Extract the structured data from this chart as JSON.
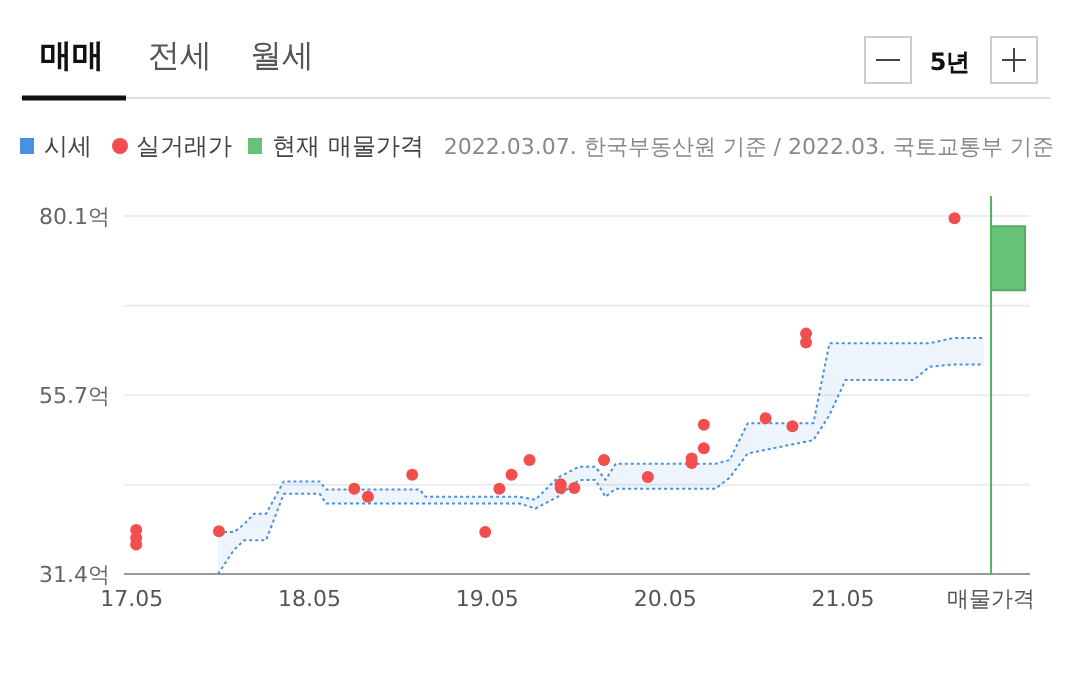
{
  "chart_data": {
    "type": "scatter",
    "ylim": [
      31.4,
      80.1
    ],
    "yticks": [
      {
        "value": 31.4,
        "label": "31.4억"
      },
      {
        "value": 43.55,
        "label": null
      },
      {
        "value": 55.7,
        "label": "55.7억"
      },
      {
        "value": 67.9,
        "label": null
      },
      {
        "value": 80.1,
        "label": "80.1억"
      }
    ],
    "xlim": [
      "2017-04-15",
      "2022-05-20"
    ],
    "xticks": [
      {
        "value": "2017-05",
        "label": "17.05"
      },
      {
        "value": "2018-05",
        "label": "18.05"
      },
      {
        "value": "2019-05",
        "label": "19.05"
      },
      {
        "value": "2020-05",
        "label": "20.05"
      },
      {
        "value": "2021-05",
        "label": "21.05"
      },
      {
        "value": "2022-03-01",
        "label": "매물가격"
      }
    ],
    "grid": "y",
    "legend": "top left",
    "annotations": [
      "매매",
      "전세",
      "월세",
      "5년",
      "2022.03.07. 한국부동산원 기준 / 2022.03. 국토교통부 기준"
    ],
    "ref_lines": [
      {
        "axis": "x",
        "value": "2022-03-01",
        "color": "#4cb85c"
      }
    ],
    "series": [
      {
        "name": "시세",
        "type": "line",
        "color": "#4a90e2",
        "line_style": "dotted",
        "x": [
          "2017-10-25",
          "2017-11-27",
          "2017-12-18",
          "2018-01-07",
          "2018-02-01",
          "2018-03-09",
          "2018-05-22",
          "2018-06-04",
          "2018-12-13",
          "2018-12-26",
          "2019-07-06",
          "2019-08-08",
          "2019-09-23",
          "2019-11-06",
          "2019-12-09",
          "2019-12-30",
          "2020-01-20",
          "2020-08-12",
          "2020-09-10",
          "2020-10-17",
          "2021-03-01",
          "2021-04-03",
          "2021-05-06",
          "2021-09-23",
          "2021-10-26",
          "2021-12-14",
          "2022-02-14"
        ],
        "values": [
          37.1,
          37.1,
          38.2,
          39.6,
          39.6,
          44.0,
          44.0,
          42.9,
          42.9,
          41.9,
          41.9,
          41.5,
          44.5,
          46.0,
          46.0,
          44.2,
          46.4,
          46.4,
          46.9,
          51.9,
          51.9,
          62.8,
          62.8,
          62.8,
          62.8,
          63.5,
          63.5
        ]
      },
      {
        "type": "line",
        "color": "#4a90e2",
        "line_style": "dotted",
        "x": [
          "2017-10-25",
          "2017-11-27",
          "2017-12-18",
          "2018-01-07",
          "2018-02-01",
          "2018-03-09",
          "2018-05-22",
          "2018-06-04",
          "2018-12-13",
          "2018-12-26",
          "2019-07-06",
          "2019-08-08",
          "2019-09-23",
          "2019-11-06",
          "2019-12-09",
          "2019-12-30",
          "2020-01-20",
          "2020-08-12",
          "2020-09-10",
          "2020-10-17",
          "2021-03-01",
          "2021-04-03",
          "2021-05-06",
          "2021-09-23",
          "2021-10-26",
          "2021-12-14",
          "2022-02-14"
        ],
        "values": [
          31.4,
          34.7,
          36.0,
          36.0,
          36.0,
          42.3,
          42.3,
          41.0,
          41.0,
          41.0,
          41.0,
          40.3,
          41.9,
          44.2,
          44.2,
          41.9,
          43.0,
          43.0,
          44.5,
          47.8,
          49.6,
          53.0,
          57.8,
          57.8,
          59.6,
          59.9,
          59.9
        ]
      },
      {
        "name": "실거래가",
        "color": "#f24e4e",
        "marker": "circle",
        "x": [
          "2017-05-10",
          "2017-05-10",
          "2017-05-10",
          "2017-10-27",
          "2018-08-01",
          "2018-08-29",
          "2018-11-28",
          "2019-04-27",
          "2019-05-26",
          "2019-06-20",
          "2019-07-27",
          "2019-09-29",
          "2019-09-29",
          "2019-10-27",
          "2019-12-27",
          "2020-03-26",
          "2020-06-24",
          "2020-06-24",
          "2020-07-19",
          "2020-07-19",
          "2020-11-23",
          "2021-01-17",
          "2021-02-14",
          "2021-02-14",
          "2021-12-16"
        ],
        "values": [
          37.4,
          36.3,
          35.4,
          37.2,
          43.0,
          41.9,
          44.9,
          37.1,
          43.0,
          44.9,
          46.9,
          43.6,
          43.1,
          43.1,
          46.9,
          44.6,
          47.1,
          46.5,
          48.5,
          51.7,
          52.6,
          51.5,
          64.1,
          62.9,
          79.8
        ]
      },
      {
        "name": "현재 매물가격",
        "type": "bar",
        "color": "#66c375",
        "x": [
          "2022-04-05"
        ],
        "base": [
          70.0
        ],
        "values": [
          8.7
        ]
      }
    ]
  }
}
